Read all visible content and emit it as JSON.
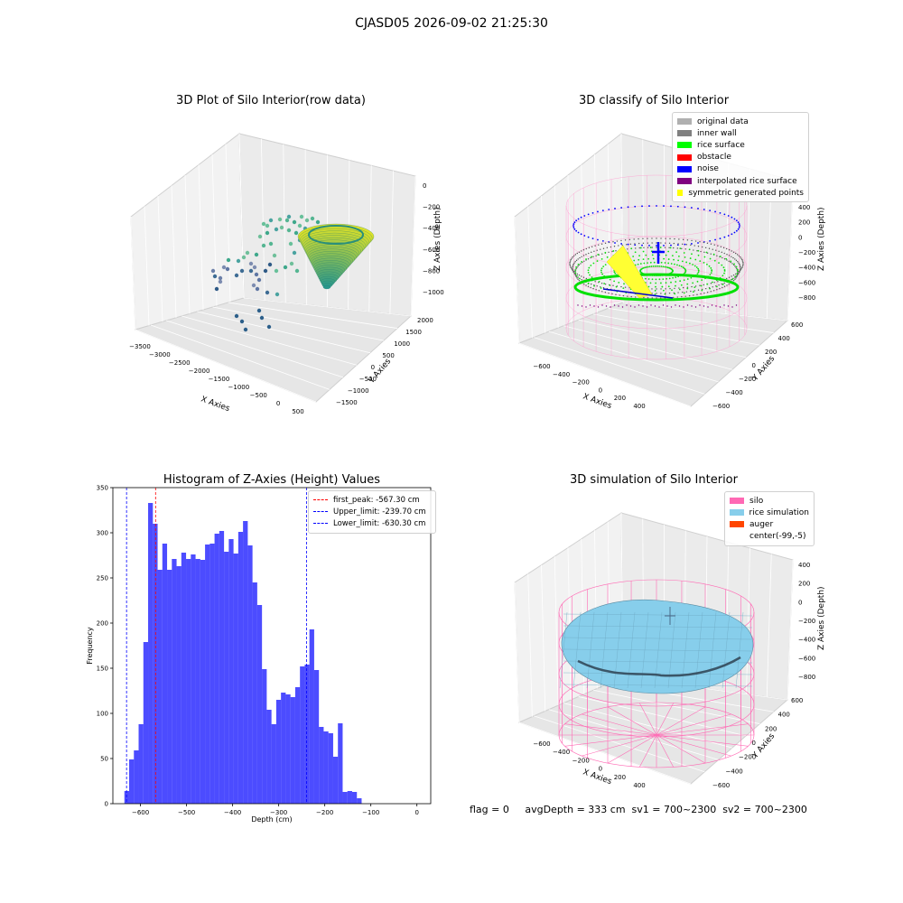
{
  "suptitle": "CJASD05 2026-09-02 21:25:30",
  "footer": "flag = 0     avgDepth = 333 cm  sv1 = 700~2300  sv2 = 700~2300",
  "panel1": {
    "title": "3D Plot of Silo Interior(row data)",
    "xlabel": "X Axies",
    "ylabel": "Y Axies",
    "zlabel": "Z Axies (Depth)",
    "xticks": [
      "−3500",
      "−3000",
      "−2500",
      "−2000",
      "−1500",
      "−1000",
      "−500",
      "0",
      "500"
    ],
    "yticks": [
      "−1500",
      "−1000",
      "−500",
      "0",
      "500",
      "1000",
      "1500",
      "2000"
    ],
    "zticks": [
      "0",
      "−200",
      "−400",
      "−600",
      "−800",
      "−1000"
    ]
  },
  "panel2": {
    "title": "3D classify of Silo Interior",
    "xlabel": "X Axies",
    "ylabel": "Y Axies",
    "zlabel": "Z Axies (Depth)",
    "xticks": [
      "−600",
      "−400",
      "−200",
      "0",
      "200",
      "400"
    ],
    "yticks": [
      "−600",
      "−400",
      "−200",
      "0",
      "200",
      "400",
      "600"
    ],
    "zticks": [
      "400",
      "200",
      "0",
      "−200",
      "−400",
      "−600",
      "−800"
    ],
    "legend": [
      {
        "label": "original data",
        "color": "#b0b0b0"
      },
      {
        "label": "inner wall",
        "color": "#808080"
      },
      {
        "label": "rice surface",
        "color": "#00ff00"
      },
      {
        "label": "obstacle",
        "color": "#ff0000"
      },
      {
        "label": "noise",
        "color": "#0000ff"
      },
      {
        "label": "interpolated rice surface",
        "color": "#800080"
      },
      {
        "label": "symmetric generated points",
        "color": "#ffff00"
      }
    ]
  },
  "panel4": {
    "title": "3D simulation of Silo Interior",
    "xlabel": "X Axies",
    "ylabel": "Y Axies",
    "zlabel": "Z Axies (Depth)",
    "xticks": [
      "−600",
      "−400",
      "−200",
      "0",
      "200",
      "400"
    ],
    "yticks": [
      "−600",
      "−400",
      "−200",
      "0",
      "200",
      "400",
      "600"
    ],
    "zticks": [
      "400",
      "200",
      "0",
      "−200",
      "−400",
      "−600",
      "−800"
    ],
    "legend": [
      {
        "label": "silo",
        "color": "#ff69b4"
      },
      {
        "label": "rice simulation",
        "color": "#87ceeb"
      },
      {
        "label": "auger",
        "color": "#ff4500"
      },
      {
        "label": "center(-99,-5)",
        "color": "#ffffff"
      }
    ]
  },
  "chart_data": [
    {
      "type": "histogram",
      "title": "Histogram of Z-Axies (Height) Values",
      "xlabel": "Depth (cm)",
      "ylabel": "Frequency",
      "xlim": [
        -660,
        30
      ],
      "ylim": [
        0,
        350
      ],
      "xticks": [
        "−600",
        "−500",
        "−400",
        "−300",
        "−200",
        "−100",
        "0"
      ],
      "yticks": [
        "0",
        "50",
        "100",
        "150",
        "200",
        "250",
        "300",
        "350"
      ],
      "bar_color": "#0000ff",
      "bin_edges_start": -635,
      "bin_width": 10.3,
      "counts": [
        14,
        49,
        59,
        88,
        179,
        333,
        310,
        259,
        288,
        259,
        271,
        263,
        278,
        271,
        276,
        271,
        270,
        287,
        288,
        299,
        302,
        279,
        293,
        277,
        301,
        313,
        286,
        245,
        220,
        149,
        104,
        88,
        115,
        123,
        121,
        118,
        129,
        152,
        154,
        193,
        148,
        85,
        80,
        78,
        52,
        89,
        13,
        14,
        13,
        6
      ],
      "reference_lines": [
        {
          "label": "first_peak: -567.30 cm",
          "x": -567.3,
          "color": "#ff0000"
        },
        {
          "label": "Upper_limit: -239.70 cm",
          "x": -239.7,
          "color": "#0000ff"
        },
        {
          "label": "Lower_limit: -630.30 cm",
          "x": -630.3,
          "color": "#0000ff"
        }
      ]
    }
  ]
}
